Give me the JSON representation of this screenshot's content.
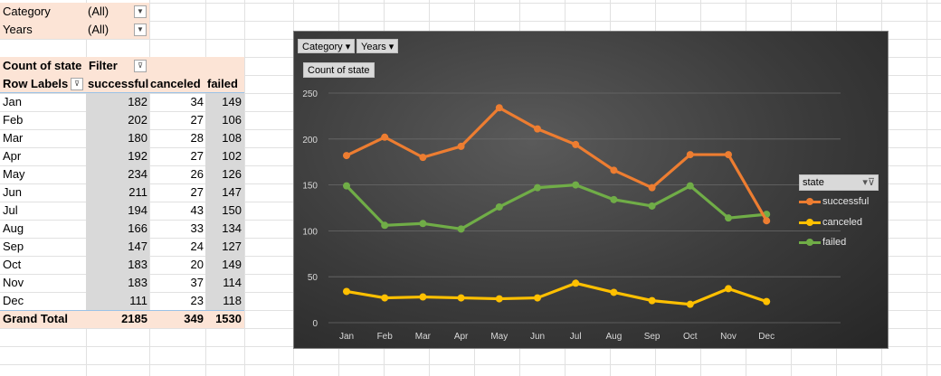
{
  "pivot": {
    "filters": [
      {
        "label": "Category",
        "value": "(All)"
      },
      {
        "label": "Years",
        "value": "(All)"
      }
    ],
    "header1": {
      "measure": "Count of state",
      "filter": "Filter"
    },
    "header2": {
      "row_labels": "Row Labels",
      "columns": [
        "successful",
        "canceled",
        "failed"
      ]
    },
    "rows": [
      {
        "label": "Jan",
        "values": [
          "182",
          "34",
          "149"
        ]
      },
      {
        "label": "Feb",
        "values": [
          "202",
          "27",
          "106"
        ]
      },
      {
        "label": "Mar",
        "values": [
          "180",
          "28",
          "108"
        ]
      },
      {
        "label": "Apr",
        "values": [
          "192",
          "27",
          "102"
        ]
      },
      {
        "label": "May",
        "values": [
          "234",
          "26",
          "126"
        ]
      },
      {
        "label": "Jun",
        "values": [
          "211",
          "27",
          "147"
        ]
      },
      {
        "label": "Jul",
        "values": [
          "194",
          "43",
          "150"
        ]
      },
      {
        "label": "Aug",
        "values": [
          "166",
          "33",
          "134"
        ]
      },
      {
        "label": "Sep",
        "values": [
          "147",
          "24",
          "127"
        ]
      },
      {
        "label": "Oct",
        "values": [
          "183",
          "20",
          "149"
        ]
      },
      {
        "label": "Nov",
        "values": [
          "183",
          "37",
          "114"
        ]
      },
      {
        "label": "Dec",
        "values": [
          "111",
          "23",
          "118"
        ]
      }
    ],
    "total": {
      "label": "Grand Total",
      "values": [
        "2185",
        "349",
        "1530"
      ]
    }
  },
  "chart_buttons": {
    "category": "Category",
    "years": "Years",
    "value": "Count of state",
    "legend_title": "state"
  },
  "colors": {
    "successful": "#ed7d31",
    "canceled": "#ffc000",
    "failed": "#70ad47"
  },
  "chart_data": {
    "type": "line",
    "categories": [
      "Jan",
      "Feb",
      "Mar",
      "Apr",
      "May",
      "Jun",
      "Jul",
      "Aug",
      "Sep",
      "Oct",
      "Nov",
      "Dec"
    ],
    "series": [
      {
        "name": "successful",
        "values": [
          182,
          202,
          180,
          192,
          234,
          211,
          194,
          166,
          147,
          183,
          183,
          111
        ]
      },
      {
        "name": "canceled",
        "values": [
          34,
          27,
          28,
          27,
          26,
          27,
          43,
          33,
          24,
          20,
          37,
          23
        ]
      },
      {
        "name": "failed",
        "values": [
          149,
          106,
          108,
          102,
          126,
          147,
          150,
          134,
          127,
          149,
          114,
          118
        ]
      }
    ],
    "ylim": [
      0,
      250
    ],
    "yticks": [
      0,
      50,
      100,
      150,
      200,
      250
    ],
    "grid": true,
    "legend": "right"
  }
}
